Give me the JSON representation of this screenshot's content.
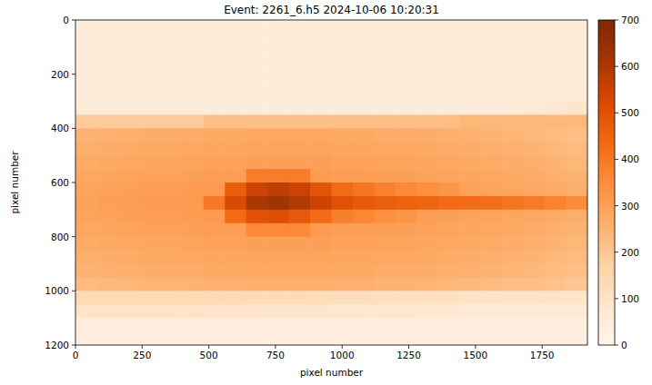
{
  "chart_data": {
    "type": "heatmap",
    "title": "Event: 2261_6.h5 2024-10-06 10:20:31",
    "x_label": "pixel number",
    "y_label": "pixel number",
    "xlim": [
      0,
      1920
    ],
    "ylim": [
      1200,
      0
    ],
    "xticks": [
      0,
      250,
      500,
      750,
      1000,
      1250,
      1500,
      1750
    ],
    "yticks": [
      0,
      200,
      400,
      600,
      800,
      1000,
      1200
    ],
    "color": "Oranges",
    "colorbar": {
      "range": [
        0,
        700
      ],
      "ticks": [
        0,
        100,
        200,
        300,
        400,
        500,
        600,
        700
      ]
    },
    "cells": [
      [
        50,
        50,
        50,
        50,
        50,
        50,
        50,
        50,
        50,
        50,
        50,
        50,
        50,
        50,
        50,
        50,
        50,
        50,
        50,
        50,
        50,
        50,
        50,
        50
      ],
      [
        50,
        50,
        50,
        50,
        50,
        50,
        50,
        50,
        50,
        50,
        50,
        50,
        50,
        50,
        50,
        50,
        50,
        50,
        50,
        50,
        50,
        50,
        50,
        50
      ],
      [
        50,
        50,
        50,
        50,
        50,
        50,
        50,
        50,
        50,
        50,
        50,
        50,
        50,
        50,
        50,
        50,
        50,
        50,
        50,
        50,
        50,
        50,
        50,
        50
      ],
      [
        50,
        50,
        50,
        50,
        50,
        50,
        50,
        50,
        50,
        50,
        50,
        50,
        50,
        50,
        50,
        50,
        50,
        50,
        50,
        50,
        50,
        50,
        50,
        50
      ],
      [
        50,
        50,
        50,
        50,
        50,
        50,
        50,
        50,
        50,
        50,
        50,
        50,
        50,
        50,
        50,
        50,
        50,
        50,
        50,
        50,
        50,
        50,
        50,
        50
      ],
      [
        50,
        50,
        50,
        50,
        50,
        50,
        50,
        50,
        50,
        50,
        50,
        50,
        50,
        50,
        50,
        50,
        50,
        50,
        50,
        50,
        50,
        50,
        50,
        50
      ],
      [
        50,
        50,
        50,
        50,
        50,
        50,
        50,
        50,
        50,
        50,
        50,
        50,
        50,
        50,
        50,
        50,
        50,
        50,
        50,
        50,
        60,
        70,
        80,
        90
      ],
      [
        190,
        190,
        190,
        190,
        190,
        190,
        220,
        220,
        220,
        220,
        220,
        220,
        220,
        220,
        220,
        220,
        220,
        220,
        240,
        240,
        240,
        240,
        240,
        240
      ],
      [
        250,
        255,
        260,
        265,
        265,
        270,
        275,
        275,
        280,
        280,
        280,
        280,
        275,
        275,
        270,
        270,
        265,
        260,
        255,
        250,
        245,
        240,
        230,
        220
      ],
      [
        260,
        265,
        270,
        275,
        275,
        280,
        285,
        285,
        290,
        290,
        290,
        290,
        285,
        285,
        280,
        280,
        275,
        270,
        265,
        260,
        255,
        250,
        240,
        230
      ],
      [
        270,
        275,
        280,
        285,
        285,
        290,
        295,
        295,
        300,
        300,
        300,
        300,
        295,
        295,
        290,
        290,
        285,
        280,
        275,
        270,
        265,
        260,
        250,
        240
      ],
      [
        280,
        285,
        290,
        295,
        295,
        300,
        305,
        305,
        390,
        390,
        390,
        310,
        305,
        305,
        300,
        300,
        295,
        290,
        285,
        280,
        275,
        270,
        260,
        250
      ],
      [
        290,
        295,
        300,
        305,
        305,
        310,
        315,
        465,
        550,
        570,
        550,
        490,
        435,
        405,
        380,
        360,
        345,
        330,
        295,
        290,
        285,
        280,
        270,
        260
      ],
      [
        295,
        300,
        305,
        310,
        310,
        315,
        400,
        520,
        605,
        625,
        595,
        545,
        500,
        480,
        465,
        455,
        450,
        435,
        430,
        425,
        410,
        395,
        375,
        355
      ],
      [
        290,
        295,
        300,
        305,
        305,
        310,
        315,
        435,
        500,
        510,
        480,
        430,
        385,
        365,
        340,
        330,
        305,
        300,
        295,
        290,
        285,
        280,
        270,
        260
      ],
      [
        280,
        285,
        290,
        295,
        295,
        300,
        305,
        305,
        360,
        360,
        360,
        310,
        305,
        305,
        300,
        300,
        295,
        290,
        285,
        280,
        275,
        270,
        260,
        250
      ],
      [
        270,
        275,
        280,
        285,
        285,
        290,
        295,
        295,
        300,
        300,
        300,
        300,
        295,
        295,
        290,
        290,
        285,
        280,
        275,
        270,
        265,
        260,
        250,
        240
      ],
      [
        260,
        265,
        270,
        275,
        275,
        280,
        285,
        285,
        290,
        290,
        290,
        290,
        285,
        285,
        280,
        280,
        275,
        270,
        265,
        260,
        255,
        250,
        240,
        230
      ],
      [
        250,
        255,
        260,
        265,
        265,
        270,
        275,
        275,
        280,
        280,
        280,
        280,
        275,
        275,
        270,
        270,
        265,
        260,
        255,
        250,
        245,
        240,
        230,
        220
      ],
      [
        230,
        235,
        240,
        245,
        245,
        250,
        255,
        255,
        260,
        260,
        260,
        260,
        255,
        255,
        250,
        250,
        245,
        240,
        235,
        230,
        225,
        220,
        210,
        200
      ],
      [
        140,
        140,
        140,
        140,
        140,
        140,
        135,
        135,
        130,
        130,
        130,
        125,
        120,
        120,
        115,
        115,
        110,
        110,
        105,
        105,
        100,
        100,
        95,
        95
      ],
      [
        100,
        100,
        100,
        100,
        100,
        100,
        95,
        95,
        95,
        90,
        90,
        90,
        85,
        85,
        80,
        80,
        75,
        75,
        70,
        70,
        65,
        65,
        60,
        60
      ],
      [
        40,
        40,
        40,
        40,
        40,
        40,
        40,
        40,
        40,
        40,
        40,
        40,
        40,
        40,
        40,
        40,
        40,
        40,
        40,
        40,
        40,
        40,
        40,
        40
      ],
      [
        40,
        40,
        40,
        40,
        40,
        40,
        40,
        40,
        40,
        40,
        40,
        40,
        40,
        40,
        40,
        40,
        40,
        40,
        40,
        40,
        40,
        40,
        40,
        40
      ]
    ]
  }
}
